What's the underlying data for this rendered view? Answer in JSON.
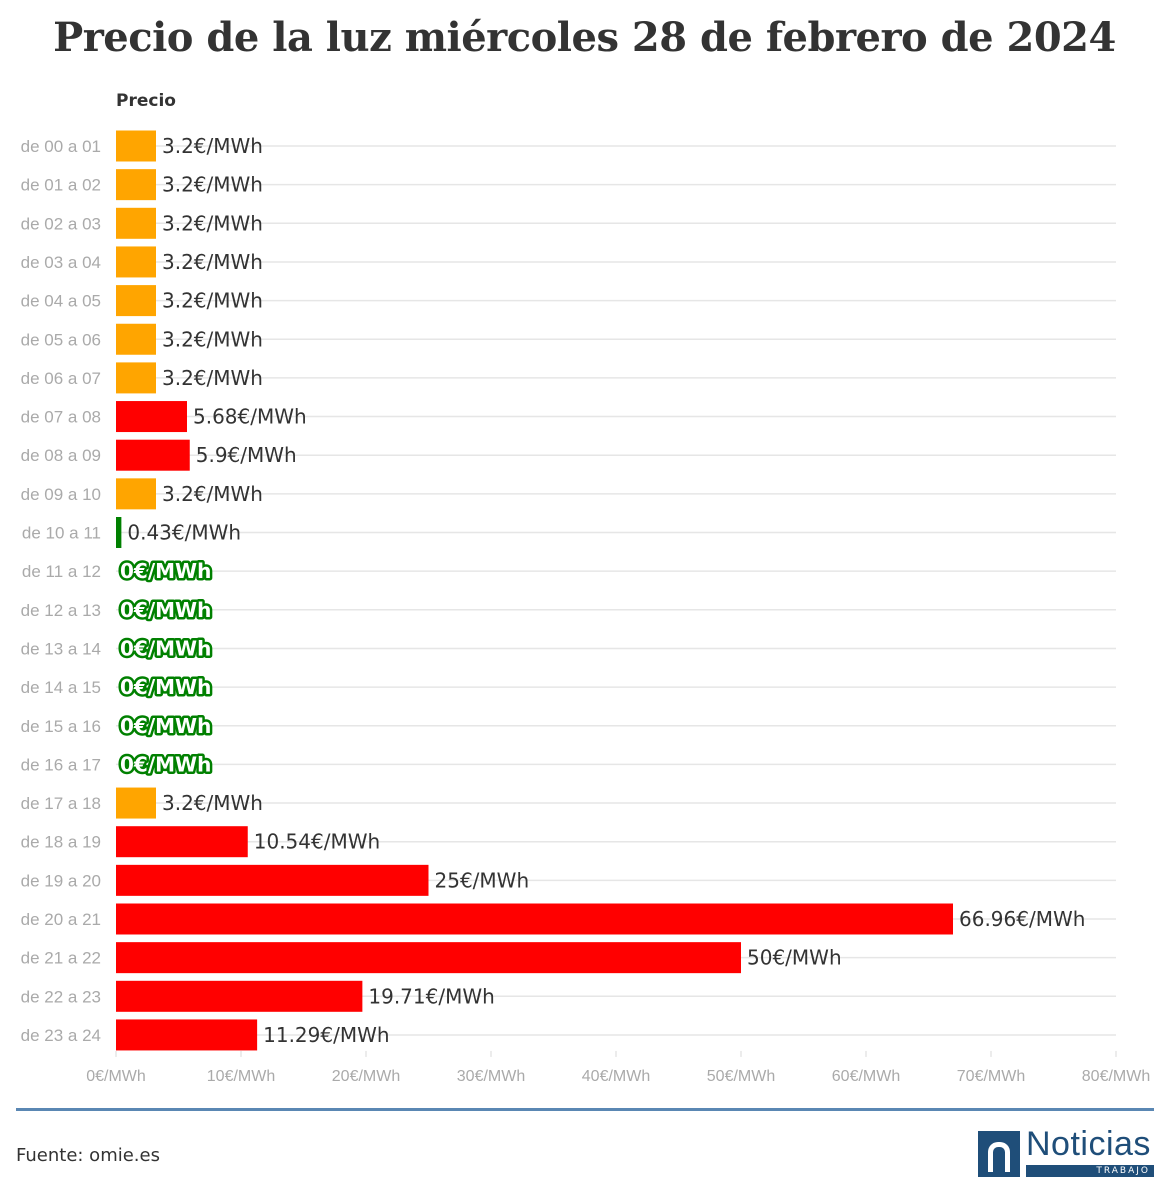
{
  "page": {
    "title": "Precio de la luz miércoles 28 de febrero de 2024",
    "source": "Fuente: omie.es",
    "logo": {
      "word": "Noticias",
      "tag": "TRABAJO"
    }
  },
  "colors": {
    "high": "#ff0000",
    "mid": "#ffa500",
    "low": "#008000",
    "grid": "#e6e6e6",
    "text": "#333333",
    "tick": "#aaaaaa"
  },
  "chart_data": {
    "type": "bar",
    "orientation": "horizontal",
    "title": "Precio de la luz miércoles 28 de febrero de 2024",
    "series_label": "Precio",
    "unit": "€/MWh",
    "xlim": [
      0,
      80
    ],
    "x_ticks": [
      0,
      10,
      20,
      30,
      40,
      50,
      60,
      70,
      80
    ],
    "x_tick_labels": [
      "0€/MWh",
      "10€/MWh",
      "20€/MWh",
      "30€/MWh",
      "40€/MWh",
      "50€/MWh",
      "60€/MWh",
      "70€/MWh",
      "80€/MWh"
    ],
    "categories": [
      "de 00 a 01",
      "de 01 a 02",
      "de 02 a 03",
      "de 03 a 04",
      "de 04 a 05",
      "de 05 a 06",
      "de 06 a 07",
      "de 07 a 08",
      "de 08 a 09",
      "de 09 a 10",
      "de 10 a 11",
      "de 11 a 12",
      "de 12 a 13",
      "de 13 a 14",
      "de 14 a 15",
      "de 15 a 16",
      "de 16 a 17",
      "de 17 a 18",
      "de 18 a 19",
      "de 19 a 20",
      "de 20 a 21",
      "de 21 a 22",
      "de 22 a 23",
      "de 23 a 24"
    ],
    "values": [
      3.2,
      3.2,
      3.2,
      3.2,
      3.2,
      3.2,
      3.2,
      5.68,
      5.9,
      3.2,
      0.43,
      0,
      0,
      0,
      0,
      0,
      0,
      3.2,
      10.54,
      25,
      66.96,
      50,
      19.71,
      11.29
    ],
    "labels": [
      "3.2€/MWh",
      "3.2€/MWh",
      "3.2€/MWh",
      "3.2€/MWh",
      "3.2€/MWh",
      "3.2€/MWh",
      "3.2€/MWh",
      "5.68€/MWh",
      "5.9€/MWh",
      "3.2€/MWh",
      "0.43€/MWh",
      "0€/MWh",
      "0€/MWh",
      "0€/MWh",
      "0€/MWh",
      "0€/MWh",
      "0€/MWh",
      "3.2€/MWh",
      "10.54€/MWh",
      "25€/MWh",
      "66.96€/MWh",
      "50€/MWh",
      "19.71€/MWh",
      "11.29€/MWh"
    ],
    "bar_colors": [
      "mid",
      "mid",
      "mid",
      "mid",
      "mid",
      "mid",
      "mid",
      "high",
      "high",
      "mid",
      "low",
      "low",
      "low",
      "low",
      "low",
      "low",
      "low",
      "mid",
      "high",
      "high",
      "high",
      "high",
      "high",
      "high"
    ],
    "grid": true
  }
}
